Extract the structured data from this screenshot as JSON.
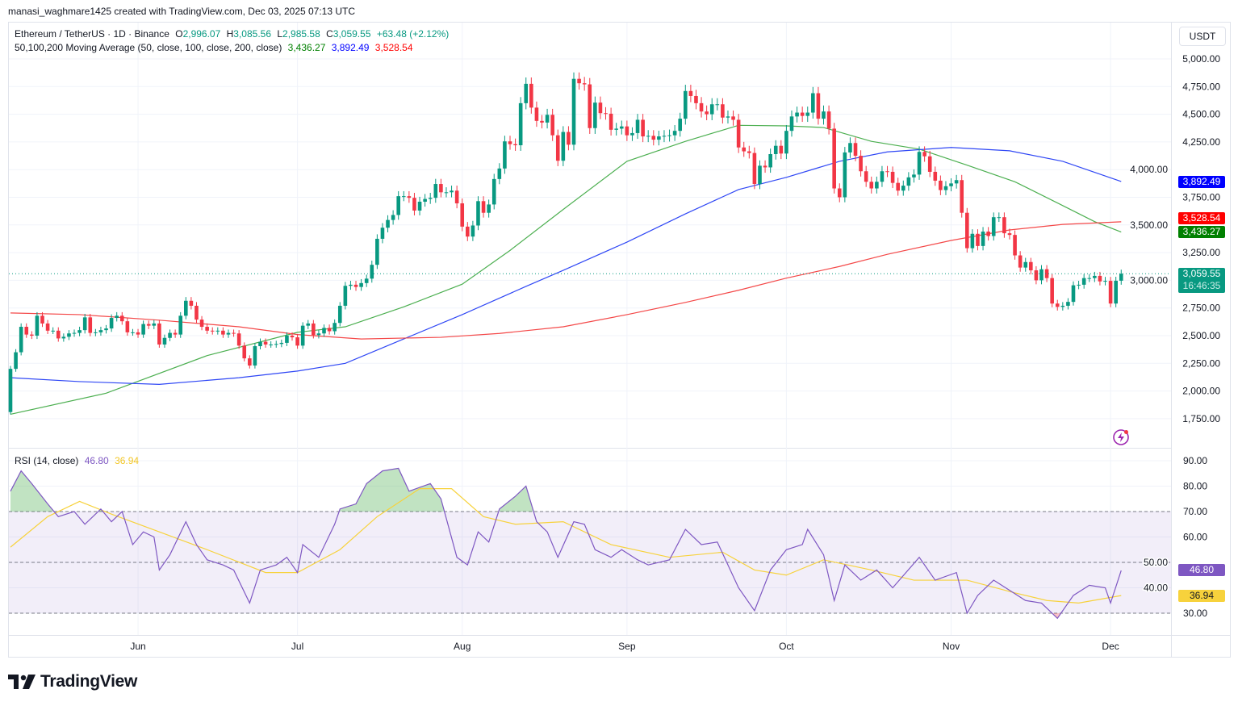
{
  "credit": "manasi_waghmare1425 created with TradingView.com, Dec 03, 2025 07:13 UTC",
  "symbol": {
    "title": "Ethereum / TetherUS · 1D · Binance",
    "o_label": "O",
    "o": "2,996.07",
    "h_label": "H",
    "h": "3,085.56",
    "l_label": "L",
    "l": "2,985.58",
    "c_label": "C",
    "c": "3,059.55",
    "change": "+63.48 (+2.12%)"
  },
  "ma_legend": {
    "title": "50,100,200 Moving Average (50, close, 100, close, 200, close)",
    "ma50": "3,436.27",
    "ma100": "3,892.49",
    "ma200": "3,528.54"
  },
  "rsi_legend": {
    "title": "RSI (14, close)",
    "rsi": "46.80",
    "rsi_ma": "36.94"
  },
  "currency_button": "USDT",
  "badges": {
    "ma100": "3,892.49",
    "ma200": "3,528.54",
    "ma50": "3,436.27",
    "last_price": "3,059.55",
    "countdown": "16:46:35",
    "rsi": "46.80",
    "rsi_ma": "36.94"
  },
  "logo_text": "TradingView",
  "colors": {
    "up": "#089981",
    "down": "#f23645",
    "ma50": "#4caf50",
    "ma100": "#2f47f5",
    "ma200": "#f44848",
    "ma50_badge": "#008000",
    "ma100_badge": "#0000ff",
    "ma200_badge": "#ff0000",
    "rsi": "#7e57c2",
    "rsi_ma": "#f7d23c"
  },
  "chart_data": [
    {
      "type": "candlestick",
      "start_date": "2025-05-08",
      "ylim": [
        1750,
        5000
      ],
      "y_ticks": [
        "5,000.00",
        "4,750.00",
        "4,500.00",
        "4,250.00",
        "4,000.00",
        "3,750.00",
        "3,500.00",
        "3,250.00",
        "3,000.00",
        "2,750.00",
        "2,500.00",
        "2,250.00",
        "2,000.00",
        "1,750.00"
      ],
      "x_ticks": [
        {
          "label": "Jun",
          "date": "2025-06-01"
        },
        {
          "label": "Jul",
          "date": "2025-07-01"
        },
        {
          "label": "Aug",
          "date": "2025-08-01"
        },
        {
          "label": "Sep",
          "date": "2025-09-01"
        },
        {
          "label": "Oct",
          "date": "2025-10-01"
        },
        {
          "label": "Nov",
          "date": "2025-11-01"
        },
        {
          "label": "Dec",
          "date": "2025-12-01"
        }
      ],
      "first_open": 1810,
      "closes": [
        2200,
        2350,
        2580,
        2510,
        2500,
        2680,
        2610,
        2545,
        2545,
        2475,
        2490,
        2520,
        2525,
        2550,
        2665,
        2525,
        2530,
        2550,
        2565,
        2660,
        2680,
        2630,
        2530,
        2530,
        2510,
        2605,
        2590,
        2610,
        2420,
        2480,
        2525,
        2510,
        2680,
        2815,
        2770,
        2645,
        2580,
        2545,
        2540,
        2545,
        2510,
        2525,
        2520,
        2410,
        2295,
        2230,
        2405,
        2445,
        2420,
        2420,
        2425,
        2435,
        2500,
        2485,
        2410,
        2590,
        2610,
        2505,
        2520,
        2570,
        2540,
        2615,
        2770,
        2950,
        2960,
        2940,
        2975,
        3015,
        3140,
        3375,
        3475,
        3545,
        3590,
        3760,
        3760,
        3745,
        3630,
        3710,
        3735,
        3745,
        3870,
        3795,
        3795,
        3810,
        3695,
        3485,
        3395,
        3495,
        3715,
        3610,
        3685,
        3915,
        4010,
        4255,
        4230,
        4220,
        4600,
        4775,
        4560,
        4440,
        4425,
        4495,
        4310,
        4080,
        4340,
        4225,
        4820,
        4780,
        4770,
        4375,
        4605,
        4510,
        4505,
        4360,
        4370,
        4390,
        4310,
        4330,
        4450,
        4300,
        4305,
        4270,
        4300,
        4305,
        4310,
        4350,
        4460,
        4710,
        4665,
        4600,
        4525,
        4500,
        4590,
        4590,
        4470,
        4480,
        4450,
        4200,
        4165,
        4150,
        3870,
        4035,
        4020,
        4140,
        4215,
        4145,
        4350,
        4480,
        4515,
        4485,
        4515,
        4690,
        4460,
        4525,
        4370,
        3830,
        3750,
        4155,
        4240,
        4125,
        3985,
        3890,
        3830,
        3890,
        3985,
        3980,
        3880,
        3810,
        3855,
        3930,
        3955,
        4160,
        4120,
        3980,
        3900,
        3815,
        3850,
        3875,
        3905,
        3610,
        3290,
        3420,
        3310,
        3440,
        3400,
        3570,
        3570,
        3425,
        3410,
        3225,
        3115,
        3165,
        3090,
        3000,
        3100,
        3020,
        2790,
        2760,
        2770,
        2805,
        2955,
        2960,
        3020,
        3020,
        3040,
        2990,
        2995,
        2790,
        2996.07,
        3059.55
      ],
      "last_price": 3059.55,
      "moving_averages": [
        {
          "name": "MA50",
          "points": [
            [
              "2025-05-08",
              1790
            ],
            [
              "2025-05-26",
              1980
            ],
            [
              "2025-06-14",
              2320
            ],
            [
              "2025-07-01",
              2530
            ],
            [
              "2025-07-10",
              2580
            ],
            [
              "2025-07-21",
              2760
            ],
            [
              "2025-08-01",
              2965
            ],
            [
              "2025-08-10",
              3270
            ],
            [
              "2025-08-20",
              3640
            ],
            [
              "2025-09-01",
              4075
            ],
            [
              "2025-09-12",
              4255
            ],
            [
              "2025-09-22",
              4400
            ],
            [
              "2025-10-01",
              4395
            ],
            [
              "2025-10-08",
              4380
            ],
            [
              "2025-10-17",
              4255
            ],
            [
              "2025-10-26",
              4185
            ],
            [
              "2025-11-04",
              4040
            ],
            [
              "2025-11-13",
              3890
            ],
            [
              "2025-11-22",
              3675
            ],
            [
              "2025-11-28",
              3530
            ],
            [
              "2025-12-03",
              3436.27
            ]
          ]
        },
        {
          "name": "MA100",
          "points": [
            [
              "2025-05-08",
              2120
            ],
            [
              "2025-05-21",
              2085
            ],
            [
              "2025-06-05",
              2060
            ],
            [
              "2025-06-20",
              2120
            ],
            [
              "2025-07-01",
              2180
            ],
            [
              "2025-07-10",
              2250
            ],
            [
              "2025-07-21",
              2470
            ],
            [
              "2025-08-01",
              2690
            ],
            [
              "2025-08-13",
              2945
            ],
            [
              "2025-08-20",
              3090
            ],
            [
              "2025-09-01",
              3345
            ],
            [
              "2025-09-12",
              3600
            ],
            [
              "2025-09-22",
              3820
            ],
            [
              "2025-10-01",
              3930
            ],
            [
              "2025-10-11",
              4075
            ],
            [
              "2025-10-20",
              4160
            ],
            [
              "2025-11-01",
              4200
            ],
            [
              "2025-11-12",
              4170
            ],
            [
              "2025-11-22",
              4075
            ],
            [
              "2025-12-03",
              3892.49
            ]
          ]
        },
        {
          "name": "MA200",
          "points": [
            [
              "2025-05-08",
              2705
            ],
            [
              "2025-05-21",
              2690
            ],
            [
              "2025-06-05",
              2640
            ],
            [
              "2025-06-20",
              2580
            ],
            [
              "2025-07-01",
              2510
            ],
            [
              "2025-07-13",
              2470
            ],
            [
              "2025-07-28",
              2485
            ],
            [
              "2025-08-08",
              2520
            ],
            [
              "2025-08-20",
              2580
            ],
            [
              "2025-09-01",
              2690
            ],
            [
              "2025-09-12",
              2800
            ],
            [
              "2025-09-22",
              2910
            ],
            [
              "2025-10-01",
              3020
            ],
            [
              "2025-10-11",
              3125
            ],
            [
              "2025-10-20",
              3235
            ],
            [
              "2025-11-01",
              3360
            ],
            [
              "2025-11-12",
              3455
            ],
            [
              "2025-11-22",
              3505
            ],
            [
              "2025-12-03",
              3528.54
            ]
          ]
        }
      ]
    },
    {
      "type": "line",
      "title": "RSI (14, close)",
      "ylim": [
        25,
        95
      ],
      "y_ticks": [
        "90.00",
        "80.00",
        "70.00",
        "60.00",
        "50.00",
        "40.00",
        "30.00"
      ],
      "bands": {
        "upper": 70,
        "middle": 50,
        "lower": 30
      },
      "series": [
        {
          "name": "RSI",
          "points": [
            [
              "2025-05-08",
              78
            ],
            [
              "2025-05-10",
              86
            ],
            [
              "2025-05-12",
              81
            ],
            [
              "2025-05-15",
              73
            ],
            [
              "2025-05-17",
              68
            ],
            [
              "2025-05-20",
              70
            ],
            [
              "2025-05-22",
              65
            ],
            [
              "2025-05-25",
              71
            ],
            [
              "2025-05-27",
              66
            ],
            [
              "2025-05-29",
              70
            ],
            [
              "2025-05-31",
              57
            ],
            [
              "2025-06-02",
              62
            ],
            [
              "2025-06-04",
              60
            ],
            [
              "2025-06-05",
              47
            ],
            [
              "2025-06-07",
              53
            ],
            [
              "2025-06-10",
              66
            ],
            [
              "2025-06-12",
              57
            ],
            [
              "2025-06-14",
              51
            ],
            [
              "2025-06-17",
              49
            ],
            [
              "2025-06-19",
              47
            ],
            [
              "2025-06-22",
              34
            ],
            [
              "2025-06-24",
              47
            ],
            [
              "2025-06-27",
              49
            ],
            [
              "2025-06-29",
              52
            ],
            [
              "2025-07-01",
              46
            ],
            [
              "2025-07-02",
              57
            ],
            [
              "2025-07-05",
              52
            ],
            [
              "2025-07-08",
              65
            ],
            [
              "2025-07-09",
              71
            ],
            [
              "2025-07-12",
              73
            ],
            [
              "2025-07-14",
              81
            ],
            [
              "2025-07-17",
              86
            ],
            [
              "2025-07-20",
              87
            ],
            [
              "2025-07-22",
              78
            ],
            [
              "2025-07-26",
              81
            ],
            [
              "2025-07-28",
              75
            ],
            [
              "2025-07-31",
              52
            ],
            [
              "2025-08-02",
              49
            ],
            [
              "2025-08-04",
              62
            ],
            [
              "2025-08-06",
              58
            ],
            [
              "2025-08-08",
              71
            ],
            [
              "2025-08-11",
              76
            ],
            [
              "2025-08-13",
              80
            ],
            [
              "2025-08-15",
              66
            ],
            [
              "2025-08-17",
              62
            ],
            [
              "2025-08-19",
              52
            ],
            [
              "2025-08-22",
              66
            ],
            [
              "2025-08-24",
              65
            ],
            [
              "2025-08-26",
              55
            ],
            [
              "2025-08-29",
              52
            ],
            [
              "2025-08-31",
              55
            ],
            [
              "2025-09-03",
              51
            ],
            [
              "2025-09-05",
              49
            ],
            [
              "2025-09-09",
              51
            ],
            [
              "2025-09-12",
              63
            ],
            [
              "2025-09-15",
              57
            ],
            [
              "2025-09-18",
              58
            ],
            [
              "2025-09-22",
              40
            ],
            [
              "2025-09-25",
              31
            ],
            [
              "2025-09-28",
              47
            ],
            [
              "2025-10-01",
              55
            ],
            [
              "2025-10-04",
              57
            ],
            [
              "2025-10-05",
              63
            ],
            [
              "2025-10-08",
              53
            ],
            [
              "2025-10-10",
              35
            ],
            [
              "2025-10-12",
              49
            ],
            [
              "2025-10-15",
              43
            ],
            [
              "2025-10-18",
              47
            ],
            [
              "2025-10-21",
              40
            ],
            [
              "2025-10-26",
              52
            ],
            [
              "2025-10-29",
              43
            ],
            [
              "2025-11-02",
              46
            ],
            [
              "2025-11-04",
              30
            ],
            [
              "2025-11-06",
              37
            ],
            [
              "2025-11-09",
              43
            ],
            [
              "2025-11-12",
              39
            ],
            [
              "2025-11-15",
              35
            ],
            [
              "2025-11-18",
              34
            ],
            [
              "2025-11-21",
              28
            ],
            [
              "2025-11-24",
              37
            ],
            [
              "2025-11-27",
              41
            ],
            [
              "2025-11-30",
              40
            ],
            [
              "2025-12-01",
              34
            ],
            [
              "2025-12-03",
              46.8
            ]
          ]
        },
        {
          "name": "RSI MA",
          "points": [
            [
              "2025-05-08",
              56
            ],
            [
              "2025-05-15",
              68
            ],
            [
              "2025-05-21",
              74
            ],
            [
              "2025-05-27",
              69
            ],
            [
              "2025-06-05",
              62
            ],
            [
              "2025-06-14",
              55
            ],
            [
              "2025-06-25",
              46
            ],
            [
              "2025-07-01",
              46
            ],
            [
              "2025-07-09",
              55
            ],
            [
              "2025-07-16",
              68
            ],
            [
              "2025-07-24",
              79
            ],
            [
              "2025-07-30",
              79
            ],
            [
              "2025-08-05",
              68
            ],
            [
              "2025-08-11",
              65
            ],
            [
              "2025-08-20",
              66
            ],
            [
              "2025-08-29",
              57
            ],
            [
              "2025-09-09",
              52
            ],
            [
              "2025-09-19",
              54
            ],
            [
              "2025-09-25",
              47
            ],
            [
              "2025-10-01",
              45
            ],
            [
              "2025-10-08",
              51
            ],
            [
              "2025-10-17",
              47
            ],
            [
              "2025-10-25",
              43
            ],
            [
              "2025-11-04",
              43
            ],
            [
              "2025-11-13",
              38
            ],
            [
              "2025-11-19",
              35
            ],
            [
              "2025-11-25",
              34
            ],
            [
              "2025-12-03",
              36.94
            ]
          ]
        }
      ]
    }
  ]
}
